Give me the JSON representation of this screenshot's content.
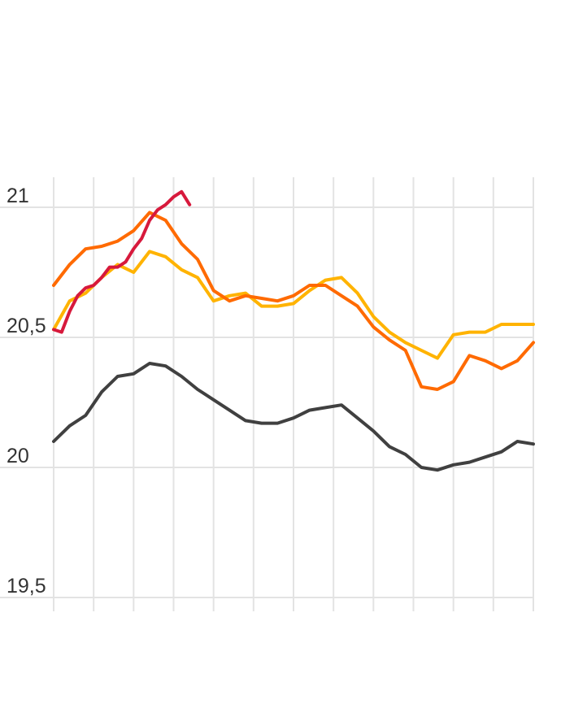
{
  "chart_data": {
    "type": "line",
    "title": "",
    "xlabel": "",
    "ylabel": "",
    "ylim": [
      19.45,
      21.15
    ],
    "yticks": [
      {
        "value": 21,
        "label": "21"
      },
      {
        "value": 20.5,
        "label": "20,5"
      },
      {
        "value": 20,
        "label": "20"
      },
      {
        "value": 19.5,
        "label": "19,5"
      }
    ],
    "x_gridlines": 13,
    "grid": true,
    "legend": "none",
    "series": [
      {
        "color": "#404040",
        "x": [
          0,
          0.4,
          0.8,
          1.2,
          1.6,
          2.0,
          2.4,
          2.8,
          3.2,
          3.6,
          4.0,
          4.4,
          4.8,
          5.2,
          5.6,
          6.0,
          6.4,
          6.8,
          7.2,
          7.6,
          8.0,
          8.4,
          8.8,
          9.2,
          9.6,
          10.0,
          10.4,
          10.8,
          11.2,
          11.6,
          12.0
        ],
        "values": [
          20.1,
          20.16,
          20.2,
          20.29,
          20.35,
          20.36,
          20.4,
          20.39,
          20.35,
          20.3,
          20.26,
          20.22,
          20.18,
          20.17,
          20.17,
          20.19,
          20.22,
          20.23,
          20.24,
          20.19,
          20.14,
          20.08,
          20.05,
          20.0,
          19.99,
          20.01,
          20.02,
          20.04,
          20.06,
          20.1,
          20.09
        ]
      },
      {
        "color": "#ffb300",
        "x": [
          0,
          0.4,
          0.8,
          1.2,
          1.6,
          2.0,
          2.4,
          2.8,
          3.2,
          3.6,
          4.0,
          4.4,
          4.8,
          5.2,
          5.6,
          6.0,
          6.4,
          6.8,
          7.2,
          7.6,
          8.0,
          8.4,
          8.8,
          9.2,
          9.6,
          10.0,
          10.4,
          10.8,
          11.2,
          11.6,
          12.0
        ],
        "values": [
          20.53,
          20.64,
          20.67,
          20.73,
          20.78,
          20.75,
          20.83,
          20.81,
          20.76,
          20.73,
          20.64,
          20.66,
          20.67,
          20.62,
          20.62,
          20.63,
          20.68,
          20.72,
          20.73,
          20.67,
          20.58,
          20.52,
          20.48,
          20.45,
          20.42,
          20.51,
          20.52,
          20.52,
          20.55,
          20.55,
          20.55
        ]
      },
      {
        "color": "#ff6a00",
        "x": [
          0,
          0.4,
          0.8,
          1.2,
          1.6,
          2.0,
          2.4,
          2.8,
          3.2,
          3.6,
          4.0,
          4.4,
          4.8,
          5.2,
          5.6,
          6.0,
          6.4,
          6.8,
          7.2,
          7.6,
          8.0,
          8.4,
          8.8,
          9.2,
          9.6,
          10.0,
          10.4,
          10.8,
          11.2,
          11.6,
          12.0
        ],
        "values": [
          20.7,
          20.78,
          20.84,
          20.85,
          20.87,
          20.91,
          20.98,
          20.95,
          20.86,
          20.8,
          20.68,
          20.64,
          20.66,
          20.65,
          20.64,
          20.66,
          20.7,
          20.7,
          20.66,
          20.62,
          20.54,
          20.49,
          20.45,
          20.31,
          20.3,
          20.33,
          20.43,
          20.41,
          20.38,
          20.41,
          20.48
        ]
      },
      {
        "color": "#d7193c",
        "x": [
          0,
          0.2,
          0.4,
          0.6,
          0.8,
          1.0,
          1.2,
          1.4,
          1.6,
          1.8,
          2.0,
          2.2,
          2.4,
          2.6,
          2.8,
          3.0,
          3.2,
          3.4
        ],
        "values": [
          20.53,
          20.52,
          20.6,
          20.66,
          20.69,
          20.7,
          20.73,
          20.77,
          20.77,
          20.79,
          20.84,
          20.88,
          20.95,
          20.99,
          21.01,
          21.04,
          21.06,
          21.01
        ]
      }
    ]
  }
}
